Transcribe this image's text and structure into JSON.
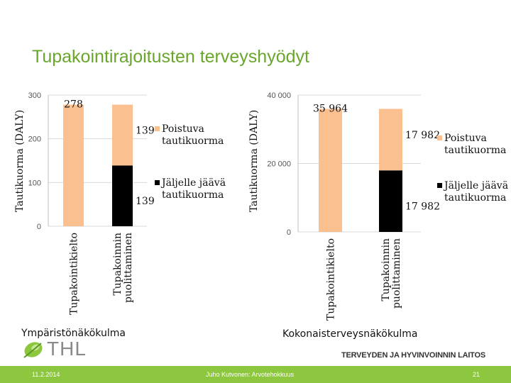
{
  "slide": {
    "title": "Tupakointirajoitusten terveyshyödyt",
    "captions": [
      "Ympäristönäkökulma",
      "Kokonaisterveysnäkökulma"
    ],
    "logo_text": "THL",
    "org_name": "TERVEYDEN JA HYVINVOINNIN LAITOS",
    "footer": {
      "date": "11.2.2014",
      "author": "Juho Kutvonen: Arvotehokkuus",
      "page": "21"
    }
  },
  "colors": {
    "accent": "#6aa62b",
    "footer": "#8dc63f",
    "poistuva": "#fac090",
    "jaljelle": "#000000"
  },
  "chart_data": [
    {
      "type": "bar",
      "stacked": true,
      "title": "",
      "ylabel": "Tautikuorma (DALY)",
      "ylim": [
        0,
        300
      ],
      "yticks": [
        "0",
        "100",
        "200",
        "300"
      ],
      "categories": [
        "Tupakointikielto",
        "Tupakoinnin puolittaminen"
      ],
      "series": [
        {
          "name": "Jäljelle jäävä tautikuorma",
          "values": [
            0,
            139
          ],
          "color": "#000000"
        },
        {
          "name": "Poistuva tautikuorma",
          "values": [
            278,
            139
          ],
          "color": "#fac090"
        }
      ],
      "data_labels": [
        "278",
        "139",
        "139"
      ],
      "legend": "right"
    },
    {
      "type": "bar",
      "stacked": true,
      "title": "",
      "ylabel": "Tautikuorma (DALY)",
      "ylim": [
        0,
        40000
      ],
      "yticks": [
        "0",
        "20 000",
        "40 000"
      ],
      "categories": [
        "Tupakointikielto",
        "Tupakoinnin puolittaminen"
      ],
      "series": [
        {
          "name": "Jäljelle jäävä tautikuorma",
          "values": [
            0,
            17982
          ],
          "color": "#000000"
        },
        {
          "name": "Poistuva tautikuorma",
          "values": [
            35964,
            17982
          ],
          "color": "#fac090"
        }
      ],
      "data_labels": [
        "35 964",
        "17 982",
        "17 982"
      ],
      "legend": "right"
    }
  ]
}
